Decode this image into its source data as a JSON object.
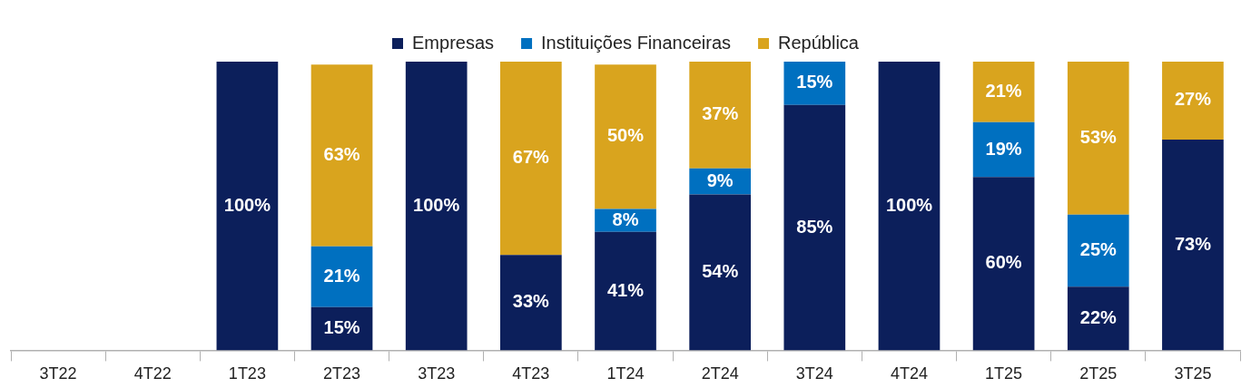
{
  "chart_data": {
    "type": "bar",
    "stacked": true,
    "categories": [
      "3T22",
      "4T22",
      "1T23",
      "2T23",
      "3T23",
      "4T23",
      "1T24",
      "2T24",
      "3T24",
      "4T24",
      "1T25",
      "2T25",
      "3T25"
    ],
    "series": [
      {
        "name": "Empresas",
        "color": "#0c1f5b",
        "values": [
          null,
          null,
          100,
          15,
          100,
          33,
          41,
          54,
          85,
          100,
          60,
          22,
          73
        ],
        "value_labels": [
          null,
          null,
          "100%",
          "15%",
          "100%",
          "33%",
          "41%",
          "54%",
          "85%",
          "100%",
          "60%",
          "22%",
          "73%"
        ]
      },
      {
        "name": "Instituições Financeiras",
        "color": "#0070c0",
        "values": [
          null,
          null,
          null,
          21,
          null,
          null,
          8,
          9,
          15,
          null,
          19,
          25,
          null
        ],
        "value_labels": [
          null,
          null,
          null,
          "21%",
          null,
          null,
          "8%",
          "9%",
          "15%",
          null,
          "19%",
          "25%",
          null
        ]
      },
      {
        "name": "República",
        "color": "#d9a41e",
        "values": [
          null,
          null,
          null,
          63,
          null,
          67,
          50,
          37,
          null,
          null,
          21,
          53,
          27
        ],
        "value_labels": [
          null,
          null,
          null,
          "63%",
          null,
          "67%",
          "50%",
          "37%",
          null,
          null,
          "21%",
          "53%",
          "27%"
        ]
      }
    ],
    "tick_labels": "x",
    "legend": "top"
  }
}
